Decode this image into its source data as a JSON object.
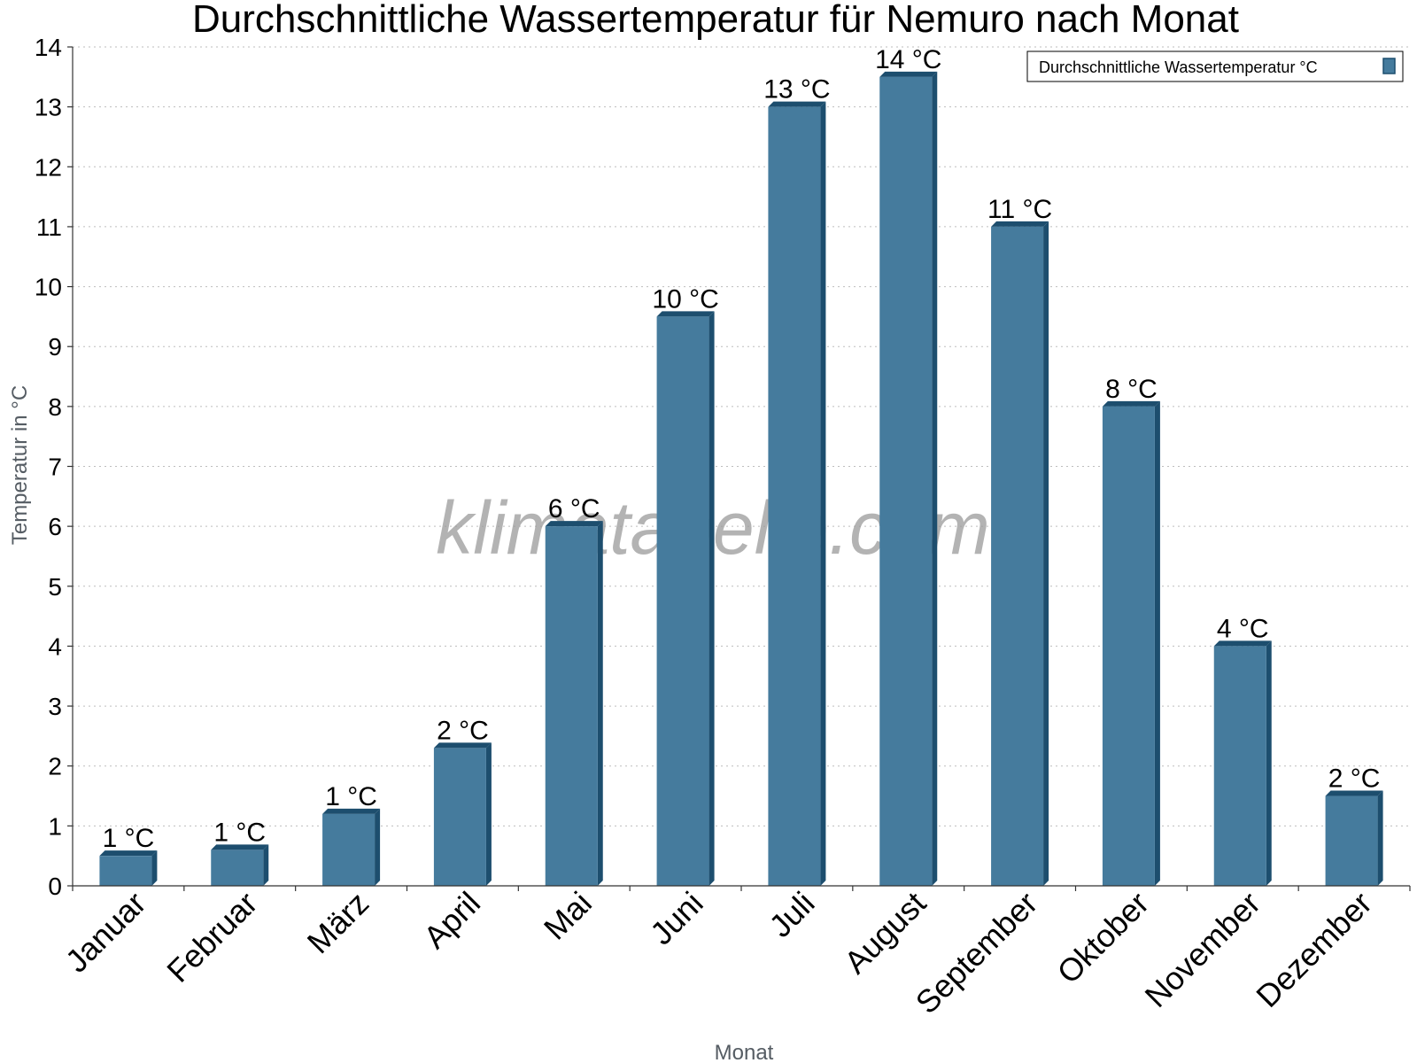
{
  "chart_data": {
    "type": "bar",
    "title": "Durchschnittliche Wassertemperatur für Nemuro nach Monat",
    "xlabel": "Monat",
    "ylabel": "Temperatur in °C",
    "ylim": [
      0,
      14
    ],
    "yticks": [
      "0",
      "1",
      "2",
      "3",
      "4",
      "5",
      "6",
      "7",
      "8",
      "9",
      "10",
      "11",
      "12",
      "13",
      "14"
    ],
    "categories": [
      "Januar",
      "Februar",
      "März",
      "April",
      "Mai",
      "Juni",
      "Juli",
      "August",
      "September",
      "Oktober",
      "November",
      "Dezember"
    ],
    "series": [
      {
        "name": "Durchschnittliche Wassertemperatur °C",
        "values": [
          0.5,
          0.6,
          1.2,
          2.3,
          6.0,
          9.5,
          13.0,
          13.5,
          11.0,
          8.0,
          4.0,
          1.5
        ],
        "labels": [
          "1 °C",
          "1 °C",
          "1 °C",
          "2 °C",
          "6 °C",
          "10 °C",
          "13 °C",
          "14 °C",
          "11 °C",
          "8 °C",
          "4 °C",
          "2 °C"
        ]
      }
    ],
    "grid": true,
    "legend_position": "top-right",
    "colors": {
      "bar": "#457b9d",
      "bar_edge": "#1d4e6e"
    },
    "watermark": "klimatabelle.com"
  }
}
